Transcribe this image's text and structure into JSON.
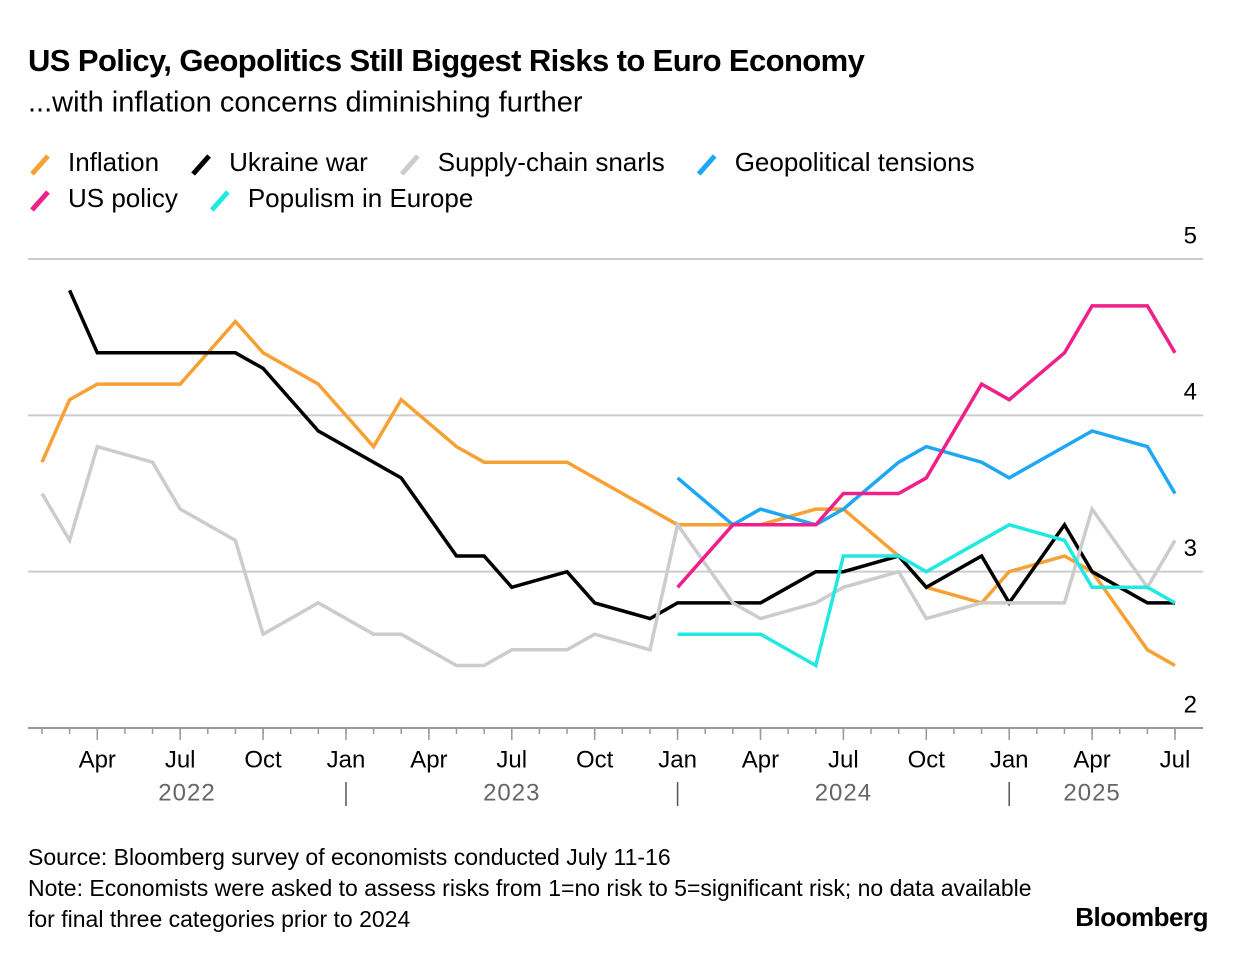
{
  "chart_data": {
    "type": "line",
    "title": "US Policy, Geopolitics Still Biggest Risks to Euro Economy",
    "subtitle": "...with inflation concerns diminishing further",
    "xlim": [
      "2022-02",
      "2025-07"
    ],
    "xticks": [
      {
        "value": "2022-04",
        "label": "Apr"
      },
      {
        "value": "2022-07",
        "label": "Jul"
      },
      {
        "value": "2022-10",
        "label": "Oct"
      },
      {
        "value": "2023-01",
        "label": "Jan"
      },
      {
        "value": "2023-04",
        "label": "Apr"
      },
      {
        "value": "2023-07",
        "label": "Jul"
      },
      {
        "value": "2023-10",
        "label": "Oct"
      },
      {
        "value": "2024-01",
        "label": "Jan"
      },
      {
        "value": "2024-04",
        "label": "Apr"
      },
      {
        "value": "2024-07",
        "label": "Jul"
      },
      {
        "value": "2024-10",
        "label": "Oct"
      },
      {
        "value": "2025-01",
        "label": "Jan"
      },
      {
        "value": "2025-04",
        "label": "Apr"
      },
      {
        "value": "2025-07",
        "label": "Jul"
      }
    ],
    "years": [
      "2022",
      "2023",
      "2024",
      "2025"
    ],
    "ylim": [
      2,
      5
    ],
    "yticks": [
      2,
      3,
      4,
      5
    ],
    "grid": true,
    "series": [
      {
        "name": "Inflation",
        "color": "#f7a134",
        "x": [
          "2022-02",
          "2022-03",
          "2022-04",
          "2022-07",
          "2022-09",
          "2022-10",
          "2022-12",
          "2023-02",
          "2023-03",
          "2023-05",
          "2023-06",
          "2023-09",
          "2024-01",
          "2024-04",
          "2024-06",
          "2024-07",
          "2024-09",
          "2024-10",
          "2024-12",
          "2025-01",
          "2025-03",
          "2025-04",
          "2025-06",
          "2025-07"
        ],
        "values": [
          3.7,
          4.1,
          4.2,
          4.2,
          4.6,
          4.4,
          4.2,
          3.8,
          4.1,
          3.8,
          3.7,
          3.7,
          3.3,
          3.3,
          3.4,
          3.4,
          3.1,
          2.9,
          2.8,
          3.0,
          3.1,
          3.0,
          2.5,
          2.4
        ]
      },
      {
        "name": "Ukraine war",
        "color": "#000000",
        "x": [
          "2022-03",
          "2022-04",
          "2022-09",
          "2022-10",
          "2022-12",
          "2023-03",
          "2023-05",
          "2023-06",
          "2023-07",
          "2023-09",
          "2023-10",
          "2023-12",
          "2024-01",
          "2024-04",
          "2024-06",
          "2024-07",
          "2024-09",
          "2024-10",
          "2024-12",
          "2025-01",
          "2025-03",
          "2025-04",
          "2025-06",
          "2025-07"
        ],
        "values": [
          4.8,
          4.4,
          4.4,
          4.3,
          3.9,
          3.6,
          3.1,
          3.1,
          2.9,
          3.0,
          2.8,
          2.7,
          2.8,
          2.8,
          3.0,
          3.0,
          3.1,
          2.9,
          3.1,
          2.8,
          3.3,
          3.0,
          2.8,
          2.8
        ]
      },
      {
        "name": "Supply-chain snarls",
        "color": "#cccccc",
        "x": [
          "2022-02",
          "2022-03",
          "2022-04",
          "2022-06",
          "2022-07",
          "2022-09",
          "2022-10",
          "2022-12",
          "2023-02",
          "2023-03",
          "2023-05",
          "2023-06",
          "2023-07",
          "2023-09",
          "2023-10",
          "2023-12",
          "2024-01",
          "2024-03",
          "2024-04",
          "2024-06",
          "2024-07",
          "2024-09",
          "2024-10",
          "2024-12",
          "2025-01",
          "2025-03",
          "2025-04",
          "2025-06",
          "2025-07"
        ],
        "values": [
          3.5,
          3.2,
          3.8,
          3.7,
          3.4,
          3.2,
          2.6,
          2.8,
          2.6,
          2.6,
          2.4,
          2.4,
          2.5,
          2.5,
          2.6,
          2.5,
          3.3,
          2.8,
          2.7,
          2.8,
          2.9,
          3.0,
          2.7,
          2.8,
          2.8,
          2.8,
          3.4,
          2.9,
          3.2
        ]
      },
      {
        "name": "Geopolitical tensions",
        "color": "#1ea7f5",
        "x": [
          "2024-01",
          "2024-03",
          "2024-04",
          "2024-06",
          "2024-07",
          "2024-09",
          "2024-10",
          "2024-12",
          "2025-01",
          "2025-03",
          "2025-04",
          "2025-06",
          "2025-07"
        ],
        "values": [
          3.6,
          3.3,
          3.4,
          3.3,
          3.4,
          3.7,
          3.8,
          3.7,
          3.6,
          3.8,
          3.9,
          3.8,
          3.5
        ]
      },
      {
        "name": "US policy",
        "color": "#f0208a",
        "x": [
          "2024-01",
          "2024-03",
          "2024-04",
          "2024-06",
          "2024-07",
          "2024-09",
          "2024-10",
          "2024-12",
          "2025-01",
          "2025-03",
          "2025-04",
          "2025-06",
          "2025-07"
        ],
        "values": [
          2.9,
          3.3,
          3.3,
          3.3,
          3.5,
          3.5,
          3.6,
          4.2,
          4.1,
          4.4,
          4.7,
          4.7,
          4.4
        ]
      },
      {
        "name": "Populism in Europe",
        "color": "#21e8e0",
        "x": [
          "2024-01",
          "2024-04",
          "2024-06",
          "2024-07",
          "2024-09",
          "2024-10",
          "2025-01",
          "2025-03",
          "2025-04",
          "2025-06",
          "2025-07"
        ],
        "values": [
          2.6,
          2.6,
          2.4,
          3.1,
          3.1,
          3.0,
          3.3,
          3.2,
          2.9,
          2.9,
          2.8
        ]
      }
    ],
    "source": "Source: Bloomberg survey of economists conducted July 11-16",
    "note": "Note: Economists were asked to assess risks from 1=no risk to 5=significant risk; no data available for final three categories prior to 2024",
    "brand": "Bloomberg"
  }
}
